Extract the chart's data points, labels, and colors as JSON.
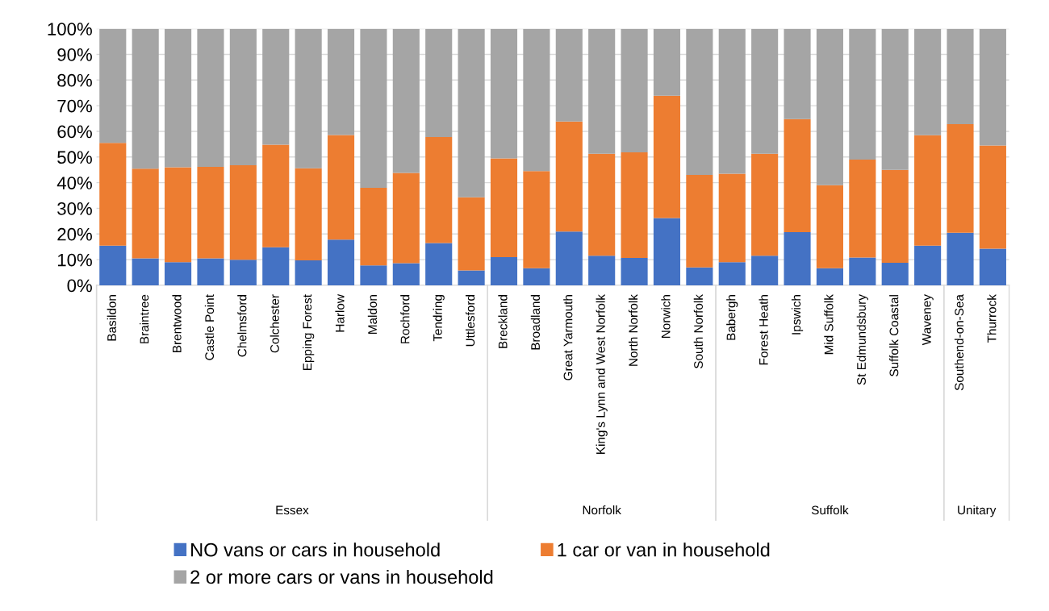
{
  "chart_data": {
    "type": "bar",
    "stacked": true,
    "categories": [
      "Basildon",
      "Braintree",
      "Brentwood",
      "Castle Point",
      "Chelmsford",
      "Colchester",
      "Epping Forest",
      "Harlow",
      "Maldon",
      "Rochford",
      "Tendring",
      "Uttlesford",
      "Breckland",
      "Broadland",
      "Great Yarmouth",
      "King's Lynn and West Norfolk",
      "North Norfolk",
      "Norwich",
      "South Norfolk",
      "Babergh",
      "Forest Heath",
      "Ipswich",
      "Mid Suffolk",
      "St Edmundsbury",
      "Suffolk Coastal",
      "Waveney",
      "Southend-on-Sea",
      "Thurrock"
    ],
    "series": [
      {
        "name": "NO vans or cars in household",
        "color": "#4472c4",
        "values": [
          15.5,
          10.5,
          9,
          10.5,
          10,
          14.8,
          9.7,
          17.8,
          7.8,
          8.6,
          16.5,
          5.8,
          11,
          6.7,
          21,
          11.5,
          10.7,
          26.2,
          7,
          9,
          11.5,
          20.7,
          6.7,
          10.8,
          8.8,
          15.5,
          20.5,
          14.3
        ]
      },
      {
        "name": "1 car or van in household",
        "color": "#ed7d31",
        "values": [
          40,
          35,
          37,
          35.7,
          36.8,
          40,
          35.9,
          40.8,
          30.2,
          35.2,
          41.3,
          28.5,
          38.5,
          37.8,
          42.8,
          39.8,
          41.1,
          47.7,
          36,
          34.5,
          39.8,
          44.1,
          32.3,
          38.2,
          36.2,
          43,
          42.3,
          40.2
        ]
      },
      {
        "name": "2 or more cars or vans in household",
        "color": "#a5a5a5",
        "values": [
          44.5,
          54.5,
          54,
          53.8,
          53.2,
          45.2,
          54.4,
          41.4,
          62,
          56.2,
          42.2,
          65.7,
          50.5,
          55.5,
          36.2,
          48.7,
          48.2,
          26.1,
          57,
          56.5,
          48.7,
          35.2,
          61,
          51,
          55,
          41.5,
          37.2,
          45.5
        ]
      }
    ],
    "ylim": [
      0,
      100
    ],
    "yticks": [
      {
        "value": 0,
        "label": "0%"
      },
      {
        "value": 10,
        "label": "10%"
      },
      {
        "value": 20,
        "label": "20%"
      },
      {
        "value": 30,
        "label": "30%"
      },
      {
        "value": 40,
        "label": "40%"
      },
      {
        "value": 50,
        "label": "50%"
      },
      {
        "value": 60,
        "label": "60%"
      },
      {
        "value": 70,
        "label": "70%"
      },
      {
        "value": 80,
        "label": "80%"
      },
      {
        "value": 90,
        "label": "90%"
      },
      {
        "value": 100,
        "label": "100%"
      }
    ],
    "annotations": [
      "Essex",
      "Norfolk",
      "Suffolk",
      "Unitary"
    ],
    "grid": "y",
    "legend": "bottom"
  }
}
